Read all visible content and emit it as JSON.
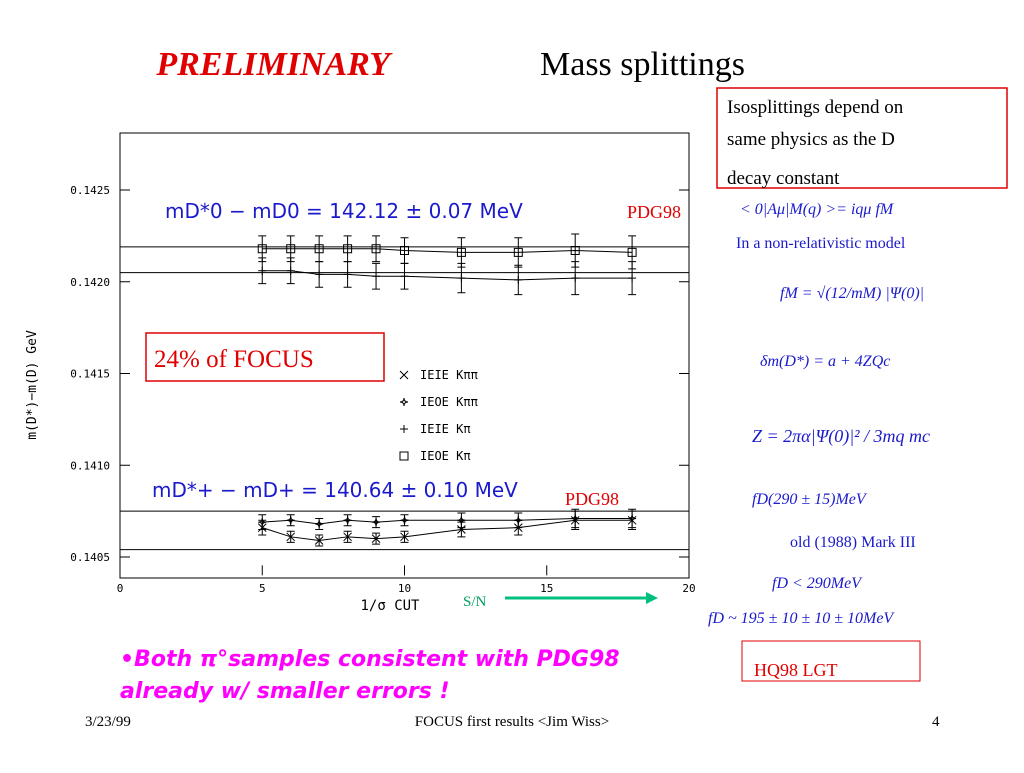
{
  "slide": {
    "title_emph": "PRELIMINARY",
    "title_rest": "Mass splittings",
    "note_box": [
      "Isosplittings depend on",
      "same physics as the D",
      "decay constant"
    ],
    "formulas": [
      "< 0|Aμ|M(q) >= iqμ fM",
      "In a non-relativistic model",
      "fM = √(12/mM) |Ψ(0)|",
      "δm(D*) = a + 4ZQc",
      "Z = 2πα|Ψ(0)|² / 3mq mc",
      "fD(290 ± 15)MeV",
      "old (1988) Mark III",
      "fD < 290MeV",
      "fD ~ 195 ± 10 ± 10 ± 10MeV"
    ],
    "lgt_box": "HQ98 LGT",
    "bullet": [
      "•Both π°samples consistent with PDG98",
      "already w/ smaller errors !"
    ],
    "footer_date": "3/23/99",
    "footer_center": "FOCUS first results <Jim Wiss>",
    "footer_page": "4"
  },
  "chart_data": {
    "type": "scatter",
    "xlabel": "1/σ CUT",
    "ylabel": "m(D*)−m(D) GeV",
    "xlim": [
      0,
      20
    ],
    "xticks": [
      0,
      5,
      10,
      15,
      20
    ],
    "ylim": [
      0.1404,
      0.1428
    ],
    "yticks": [
      0.1405,
      {
        "value": 0.141,
        "label": "0.1410"
      },
      0.1415,
      {
        "value": 0.142,
        "label": "0.1420"
      },
      0.1425
    ],
    "x": [
      5,
      6,
      7,
      8,
      9,
      10,
      12,
      14,
      16,
      18
    ],
    "series": [
      {
        "name": "IEIE Kππ",
        "marker": "x",
        "color": "#000000",
        "connect": true,
        "values": [
          0.14066,
          0.14061,
          0.14059,
          0.14061,
          0.1406,
          0.14061,
          0.14065,
          0.14066,
          0.1407,
          0.1407
        ],
        "errors": [
          4e-05,
          3e-05,
          3e-05,
          3e-05,
          3e-05,
          3e-05,
          4e-05,
          4e-05,
          5e-05,
          5e-05
        ]
      },
      {
        "name": "IEOE Kππ",
        "marker": "star",
        "color": "#000000",
        "connect": true,
        "values": [
          0.14069,
          0.1407,
          0.14068,
          0.1407,
          0.14069,
          0.1407,
          0.1407,
          0.1407,
          0.14071,
          0.14071
        ],
        "errors": [
          4e-05,
          3e-05,
          3e-05,
          3e-05,
          3e-05,
          3e-05,
          4e-05,
          4e-05,
          5e-05,
          5e-05
        ]
      },
      {
        "name": "IEIE Kπ",
        "marker": "plus",
        "color": "#000000",
        "connect": true,
        "values": [
          0.14206,
          0.14206,
          0.14204,
          0.14204,
          0.14203,
          0.14203,
          0.14202,
          0.14201,
          0.14202,
          0.14202
        ],
        "errors": [
          7e-05,
          7e-05,
          7e-05,
          7e-05,
          7e-05,
          7e-05,
          8e-05,
          8e-05,
          9e-05,
          9e-05
        ]
      },
      {
        "name": "IEOE Kπ",
        "marker": "square",
        "color": "#000000",
        "connect": true,
        "values": [
          0.14218,
          0.14218,
          0.14218,
          0.14218,
          0.14218,
          0.14217,
          0.14216,
          0.14216,
          0.14217,
          0.14216
        ],
        "errors": [
          7e-05,
          7e-05,
          7e-05,
          7e-05,
          7e-05,
          7e-05,
          8e-05,
          8e-05,
          9e-05,
          9e-05
        ]
      }
    ],
    "reference_lines": [
      0.14219,
      0.14205,
      0.14075,
      0.14054
    ],
    "annotations": [
      "mD*0 − mD0 = 142.12 ± 0.07 MeV",
      "PDG98",
      "mD*+ − mD+ = 140.64 ± 0.10 MeV",
      "PDG98",
      "24% of FOCUS",
      "S/N"
    ]
  }
}
